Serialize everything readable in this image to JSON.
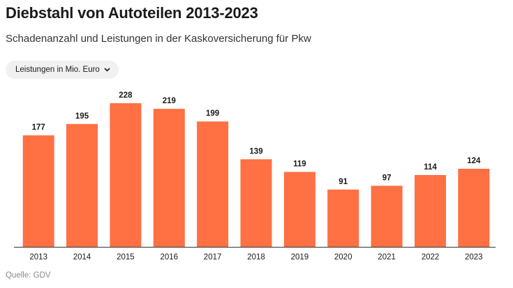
{
  "header": {
    "title": "Diebstahl von Autoteilen 2013-2023",
    "subtitle": "Schadenanzahl und Leistungen in der Kaskoversicherung für Pkw"
  },
  "controls": {
    "metric_dropdown": {
      "selected": "Leistungen in Mio. Euro",
      "icon": "chevron-down-icon"
    }
  },
  "footer": {
    "source": "Quelle: GDV"
  },
  "colors": {
    "bar": "#ff7043",
    "axis": "#333333",
    "label": "#1a1a1a"
  },
  "chart_data": {
    "type": "bar",
    "categories": [
      "2013",
      "2014",
      "2015",
      "2016",
      "2017",
      "2018",
      "2019",
      "2020",
      "2021",
      "2022",
      "2023"
    ],
    "values": [
      177,
      195,
      228,
      219,
      199,
      139,
      119,
      91,
      97,
      114,
      124
    ],
    "ylim": [
      0,
      228
    ],
    "grid": false,
    "data_labels": true
  }
}
